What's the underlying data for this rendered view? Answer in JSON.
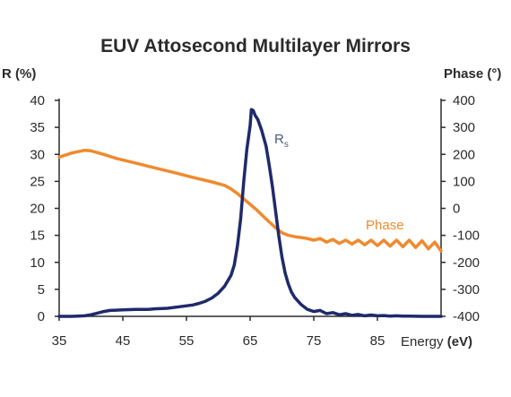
{
  "chart_data": {
    "type": "line",
    "title": "EUV Attosecond Multilayer Mirrors",
    "xlabel_prefix": "Energy",
    "xlabel_unit": "(eV)",
    "ylabel_left": "R (%)",
    "ylabel_right": "Phase (°)",
    "xlim": [
      35,
      95
    ],
    "ylim_left": [
      0,
      40
    ],
    "ylim_right": [
      -400,
      400
    ],
    "x_ticks": [
      "35",
      "45",
      "55",
      "65",
      "75",
      "85"
    ],
    "x_tick_values": [
      35,
      45,
      55,
      65,
      75,
      85
    ],
    "y_left_ticks": [
      "0",
      "5",
      "10",
      "15",
      "20",
      "25",
      "30",
      "35",
      "40"
    ],
    "y_left_tick_values": [
      0,
      5,
      10,
      15,
      20,
      25,
      30,
      35,
      40
    ],
    "y_right_ticks": [
      "-400",
      "-300",
      "-200",
      "-100",
      "0",
      "100",
      "200",
      "300",
      "400"
    ],
    "y_right_tick_values": [
      -400,
      -300,
      -200,
      -100,
      0,
      100,
      200,
      300,
      400
    ],
    "grid": false,
    "colors": {
      "reflectance": "#1f2a6b",
      "phase": "#ef8a2f",
      "frame": "#2b2b2b"
    },
    "series": [
      {
        "name": "Rs",
        "name_main": "R",
        "name_sub": "s",
        "axis": "left",
        "x": [
          35,
          37,
          39,
          40,
          41,
          42,
          43,
          45,
          47,
          49,
          50,
          52,
          54,
          56,
          57,
          58,
          59,
          60,
          61,
          62,
          62.5,
          63,
          63.5,
          64,
          64.5,
          65,
          65.2,
          65.5,
          65.8,
          66.2,
          66.8,
          67.5,
          68,
          68.5,
          69,
          69.5,
          70,
          70.5,
          71,
          71.5,
          72,
          73,
          74,
          75,
          76,
          77,
          78,
          79,
          80,
          81,
          82,
          83,
          84,
          85,
          86,
          87,
          88,
          89,
          90,
          92,
          94,
          95
        ],
        "y": [
          0,
          0,
          0.1,
          0.3,
          0.6,
          0.9,
          1.1,
          1.2,
          1.3,
          1.3,
          1.4,
          1.5,
          1.8,
          2.1,
          2.4,
          2.8,
          3.4,
          4.3,
          5.6,
          7.6,
          9.5,
          13,
          18,
          25,
          31,
          35.3,
          38.3,
          38.1,
          37.2,
          36.5,
          34.5,
          31.5,
          28,
          24,
          19.5,
          15,
          11,
          8,
          6,
          4.5,
          3.5,
          2.2,
          1.3,
          0.9,
          1.1,
          0.5,
          0.7,
          0.3,
          0.5,
          0.2,
          0.35,
          0.1,
          0.25,
          0.1,
          0.15,
          0.05,
          0.1,
          0.05,
          0.05,
          0,
          0,
          0
        ]
      },
      {
        "name": "Phase",
        "axis": "right",
        "x": [
          35,
          37,
          39,
          40,
          42,
          44,
          47,
          50,
          53,
          56,
          59,
          61,
          62,
          63,
          64,
          65,
          66,
          67,
          68,
          69,
          70,
          71,
          72,
          73,
          74,
          75,
          76,
          77,
          78,
          79,
          80,
          81,
          82,
          83,
          84,
          85,
          86,
          87,
          88,
          89,
          90,
          91,
          92,
          93,
          94,
          95
        ],
        "y": [
          190,
          205,
          215,
          213,
          200,
          185,
          168,
          150,
          133,
          115,
          98,
          85,
          72,
          55,
          35,
          15,
          -5,
          -28,
          -50,
          -72,
          -90,
          -100,
          -105,
          -108,
          -112,
          -118,
          -112,
          -125,
          -115,
          -130,
          -118,
          -132,
          -118,
          -135,
          -118,
          -138,
          -118,
          -140,
          -118,
          -142,
          -118,
          -145,
          -120,
          -150,
          -125,
          -158
        ]
      }
    ]
  }
}
